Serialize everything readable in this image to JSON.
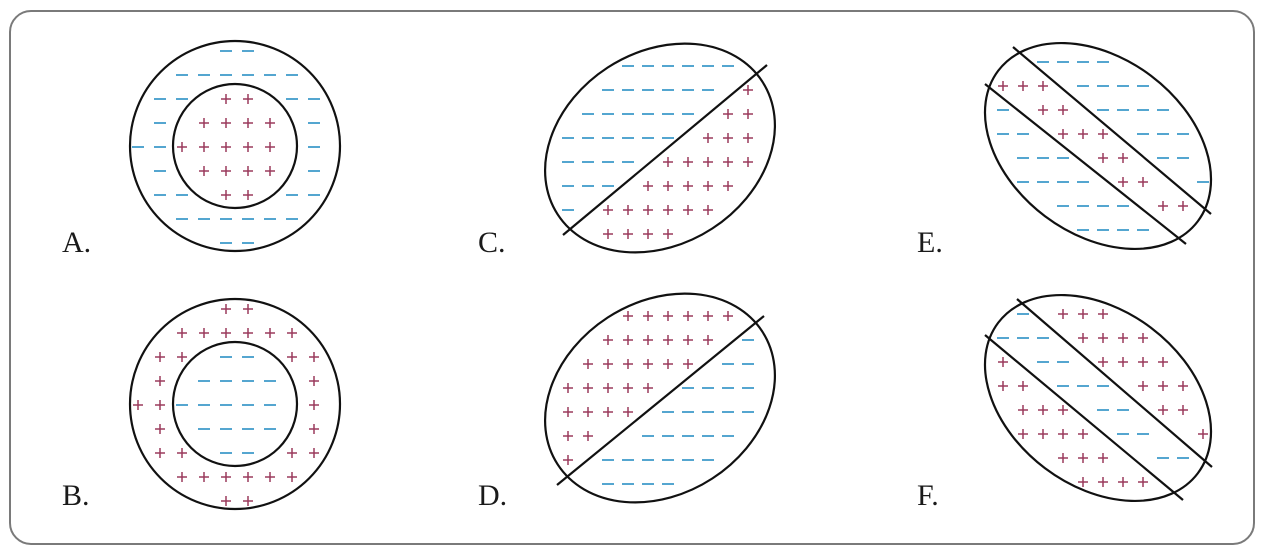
{
  "colors": {
    "frame": "#7a7a7a",
    "negative": "#2a8fc4",
    "positive": "#9a3a5c",
    "outline": "#111111"
  },
  "symbols": {
    "positive": "plus",
    "negative": "minus"
  },
  "panels": [
    {
      "id": "A",
      "label": "A.",
      "shape": "concentric-circles",
      "inner": "positive",
      "outer": "negative"
    },
    {
      "id": "B",
      "label": "B.",
      "shape": "concentric-circles",
      "inner": "negative",
      "outer": "positive"
    },
    {
      "id": "C",
      "label": "C.",
      "shape": "ellipse-split-diagonal",
      "upper_left": "negative",
      "lower_right": "positive"
    },
    {
      "id": "D",
      "label": "D.",
      "shape": "ellipse-split-diagonal",
      "upper_left": "positive",
      "lower_right": "negative"
    },
    {
      "id": "E",
      "label": "E.",
      "shape": "ellipse-three-bands",
      "outer_bands": "negative",
      "middle_band": "positive"
    },
    {
      "id": "F",
      "label": "F.",
      "shape": "ellipse-three-bands",
      "outer_bands": "positive",
      "middle_band": "negative"
    }
  ]
}
